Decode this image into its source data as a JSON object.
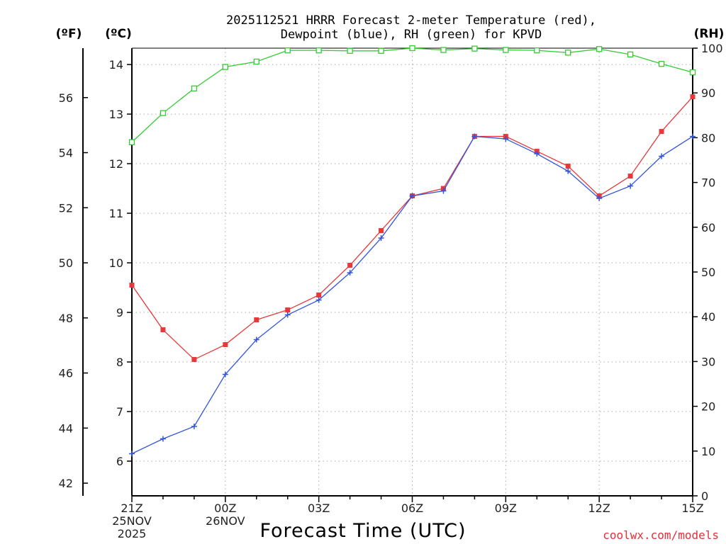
{
  "chart_data": {
    "type": "line",
    "title_lines": [
      "2025112521 HRRR Forecast 2-meter Temperature (red),",
      "Dewpoint (blue), RH (green) for KPVD"
    ],
    "xlabel": "Forecast Time (UTC)",
    "credit": "coolwx.com/models",
    "units": {
      "fahrenheit": "(ºF)",
      "celsius": "(ºC)",
      "rh": "(RH)"
    },
    "x": [
      0,
      1,
      2,
      3,
      4,
      5,
      6,
      7,
      8,
      9,
      10,
      11,
      12,
      13,
      14,
      15,
      16,
      17,
      18
    ],
    "x_ticks": [
      {
        "x": 0,
        "lines": [
          "21Z",
          "25NOV",
          "2025"
        ]
      },
      {
        "x": 3,
        "lines": [
          "00Z",
          "26NOV"
        ]
      },
      {
        "x": 6,
        "lines": [
          "03Z"
        ]
      },
      {
        "x": 9,
        "lines": [
          "06Z"
        ]
      },
      {
        "x": 12,
        "lines": [
          "09Z"
        ]
      },
      {
        "x": 15,
        "lines": [
          "12Z"
        ]
      },
      {
        "x": 18,
        "lines": [
          "15Z"
        ]
      }
    ],
    "xlim": [
      0,
      18
    ],
    "celsius_axis": {
      "lim": [
        5.3,
        14.33
      ],
      "ticks": [
        "6",
        "7",
        "8",
        "9",
        "10",
        "11",
        "12",
        "13",
        "14"
      ]
    },
    "fahrenheit_axis": {
      "ticks": [
        "42",
        "44",
        "46",
        "48",
        "50",
        "52",
        "54",
        "56"
      ]
    },
    "rh_axis": {
      "lim": [
        0,
        100
      ],
      "ticks": [
        "0",
        "10",
        "20",
        "30",
        "40",
        "50",
        "60",
        "70",
        "80",
        "90",
        "100"
      ]
    },
    "series": [
      {
        "name": "Temperature",
        "axis": "celsius",
        "color": "#e8383a",
        "marker": "filled-square",
        "values": [
          9.55,
          8.65,
          8.05,
          8.35,
          8.85,
          9.05,
          9.35,
          9.95,
          10.65,
          11.35,
          11.5,
          12.55,
          12.55,
          12.25,
          11.95,
          11.35,
          11.75,
          12.65,
          13.35
        ]
      },
      {
        "name": "Dewpoint",
        "axis": "celsius",
        "color": "#3355dd",
        "marker": "plus",
        "values": [
          6.15,
          6.45,
          6.7,
          7.75,
          8.45,
          8.95,
          9.25,
          9.8,
          10.5,
          11.35,
          11.45,
          12.55,
          12.5,
          12.2,
          11.85,
          11.3,
          11.55,
          12.15,
          12.55
        ]
      },
      {
        "name": "RH",
        "axis": "rh",
        "color": "#33cc33",
        "marker": "open-square",
        "values": [
          79,
          85.5,
          91,
          95.8,
          97,
          99.5,
          99.5,
          99.4,
          99.4,
          100,
          99.6,
          99.9,
          99.6,
          99.5,
          99,
          99.8,
          98.6,
          96.5,
          94.6
        ]
      }
    ]
  }
}
